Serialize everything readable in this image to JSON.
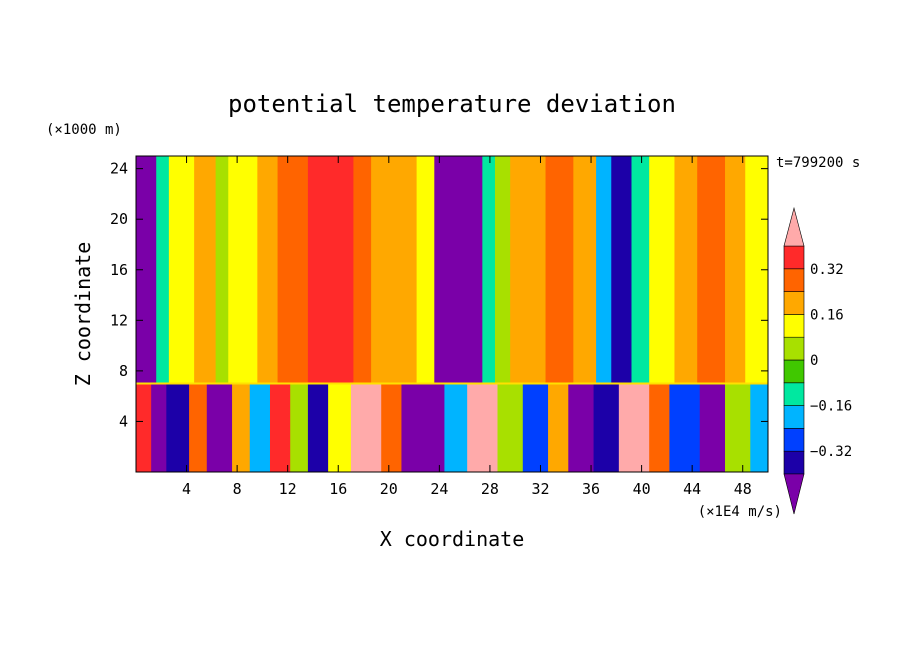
{
  "chart_data": {
    "type": "heatmap",
    "title": "potential temperature deviation",
    "xlabel": "X coordinate",
    "ylabel": "Z coordinate",
    "x_unit": "(×1E4 m/s)",
    "y_unit": "(×1000 m)",
    "time_label": "t=799200 s",
    "xlim": [
      0,
      50
    ],
    "ylim": [
      0,
      25
    ],
    "x_ticks": [
      4,
      8,
      12,
      16,
      20,
      24,
      28,
      32,
      36,
      40,
      44,
      48
    ],
    "y_ticks": [
      4,
      8,
      12,
      16,
      20,
      24
    ],
    "colorbar": {
      "levels": [
        -0.4,
        -0.32,
        -0.24,
        -0.16,
        -0.08,
        0,
        0.08,
        0.16,
        0.24,
        0.32,
        0.4
      ],
      "labels": [
        "-0.32",
        "-0.16",
        "0",
        "0.16",
        "0.32"
      ],
      "label_values": [
        -0.32,
        -0.16,
        0,
        0.16,
        0.32
      ],
      "colors": [
        "#7a00a8",
        "#1c00a8",
        "#0040ff",
        "#00b4ff",
        "#00e8a0",
        "#40c800",
        "#a8e000",
        "#ffff00",
        "#ffa800",
        "#ff6400",
        "#ff2a2a",
        "#ffaaaa"
      ]
    },
    "upper_layer_columns": [
      {
        "x0": 0,
        "x1": 1.6,
        "value": -0.45
      },
      {
        "x0": 1.6,
        "x1": 2.6,
        "value": -0.12
      },
      {
        "x0": 2.6,
        "x1": 4.6,
        "value": 0.14
      },
      {
        "x0": 4.6,
        "x1": 6.3,
        "value": 0.22
      },
      {
        "x0": 6.3,
        "x1": 7.3,
        "value": 0.06
      },
      {
        "x0": 7.3,
        "x1": 9.6,
        "value": 0.14
      },
      {
        "x0": 9.6,
        "x1": 11.2,
        "value": 0.18
      },
      {
        "x0": 11.2,
        "x1": 13.6,
        "value": 0.3
      },
      {
        "x0": 13.6,
        "x1": 17.2,
        "value": 0.38
      },
      {
        "x0": 17.2,
        "x1": 18.6,
        "value": 0.26
      },
      {
        "x0": 18.6,
        "x1": 20.2,
        "value": 0.2
      },
      {
        "x0": 20.2,
        "x1": 22.2,
        "value": 0.16
      },
      {
        "x0": 22.2,
        "x1": 23.6,
        "value": 0.1
      },
      {
        "x0": 23.6,
        "x1": 27.4,
        "value": -0.45
      },
      {
        "x0": 27.4,
        "x1": 28.4,
        "value": -0.12
      },
      {
        "x0": 28.4,
        "x1": 29.6,
        "value": 0.04
      },
      {
        "x0": 29.6,
        "x1": 31.2,
        "value": 0.18
      },
      {
        "x0": 31.2,
        "x1": 32.4,
        "value": 0.22
      },
      {
        "x0": 32.4,
        "x1": 34.6,
        "value": 0.3
      },
      {
        "x0": 34.6,
        "x1": 36.4,
        "value": 0.2
      },
      {
        "x0": 36.4,
        "x1": 37.6,
        "value": -0.2
      },
      {
        "x0": 37.6,
        "x1": 39.2,
        "value": -0.36
      },
      {
        "x0": 39.2,
        "x1": 40.6,
        "value": -0.14
      },
      {
        "x0": 40.6,
        "x1": 42.6,
        "value": 0.14
      },
      {
        "x0": 42.6,
        "x1": 44.4,
        "value": 0.22
      },
      {
        "x0": 44.4,
        "x1": 46.6,
        "value": 0.28
      },
      {
        "x0": 46.6,
        "x1": 48.2,
        "value": 0.2
      },
      {
        "x0": 48.2,
        "x1": 50,
        "value": 0.12
      }
    ],
    "lower_layer_cells": [
      {
        "x0": 0,
        "x1": 1.2,
        "value": 0.36
      },
      {
        "x0": 1.2,
        "x1": 2.4,
        "value": -0.45
      },
      {
        "x0": 2.4,
        "x1": 4.2,
        "value": -0.36
      },
      {
        "x0": 4.2,
        "x1": 5.6,
        "value": 0.3
      },
      {
        "x0": 5.6,
        "x1": 7.6,
        "value": -0.45
      },
      {
        "x0": 7.6,
        "x1": 9.0,
        "value": 0.16
      },
      {
        "x0": 9.0,
        "x1": 10.6,
        "value": -0.2
      },
      {
        "x0": 10.6,
        "x1": 12.2,
        "value": 0.36
      },
      {
        "x0": 12.2,
        "x1": 13.6,
        "value": 0.0
      },
      {
        "x0": 13.6,
        "x1": 15.2,
        "value": -0.36
      },
      {
        "x0": 15.2,
        "x1": 17.0,
        "value": 0.1
      },
      {
        "x0": 17.0,
        "x1": 19.4,
        "value": 0.42
      },
      {
        "x0": 19.4,
        "x1": 21.0,
        "value": 0.3
      },
      {
        "x0": 21.0,
        "x1": 24.4,
        "value": -0.45
      },
      {
        "x0": 24.4,
        "x1": 26.2,
        "value": -0.2
      },
      {
        "x0": 26.2,
        "x1": 28.6,
        "value": 0.42
      },
      {
        "x0": 28.6,
        "x1": 30.6,
        "value": 0.06
      },
      {
        "x0": 30.6,
        "x1": 32.6,
        "value": -0.3
      },
      {
        "x0": 32.6,
        "x1": 34.2,
        "value": 0.2
      },
      {
        "x0": 34.2,
        "x1": 36.2,
        "value": -0.45
      },
      {
        "x0": 36.2,
        "x1": 38.2,
        "value": -0.36
      },
      {
        "x0": 38.2,
        "x1": 40.6,
        "value": 0.42
      },
      {
        "x0": 40.6,
        "x1": 42.2,
        "value": 0.3
      },
      {
        "x0": 42.2,
        "x1": 44.6,
        "value": -0.3
      },
      {
        "x0": 44.6,
        "x1": 46.6,
        "value": -0.45
      },
      {
        "x0": 46.6,
        "x1": 48.6,
        "value": 0.0
      },
      {
        "x0": 48.6,
        "x1": 50,
        "value": -0.2
      }
    ],
    "layer_boundary_z": 7,
    "grid": false,
    "legend": "colorbar-right"
  }
}
